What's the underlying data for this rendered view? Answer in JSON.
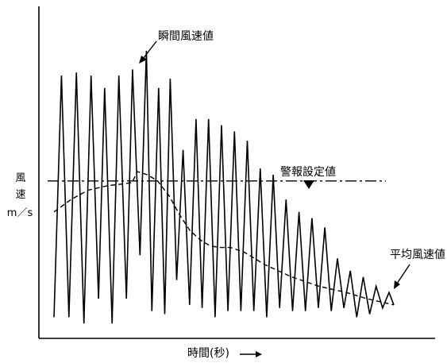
{
  "chart_data": {
    "type": "line",
    "xlabel": "時間(秒)",
    "ylabel_chars": [
      "風",
      "速"
    ],
    "ylabel_unit": "m／s",
    "xlim": [
      0,
      100
    ],
    "ylim": [
      0,
      100
    ],
    "grid": false,
    "annotations": {
      "instant": "瞬間風速値",
      "threshold": "警報設定値",
      "average": "平均風速値"
    },
    "series": [
      {
        "key": "instant",
        "style": "solid",
        "x": [
          0.0,
          2.2,
          4.4,
          6.6,
          8.8,
          10.9,
          13.1,
          14.9,
          17.1,
          19.1,
          21.3,
          23.1,
          25.3,
          27.2,
          28.8,
          30.8,
          32.6,
          34.2,
          36.1,
          38.0,
          39.9,
          41.8,
          43.6,
          45.5,
          47.4,
          49.3,
          51.2,
          53.1,
          55.0,
          56.9,
          58.8,
          60.7,
          62.6,
          64.5,
          66.4,
          68.3,
          70.2,
          72.1,
          74.0,
          75.9,
          77.8,
          79.7,
          81.6,
          83.4,
          85.3,
          87.2,
          89.1,
          91.0,
          92.9,
          94.8,
          96.7,
          98.6,
          100
        ],
        "y": [
          4,
          82,
          4,
          83,
          2,
          82,
          10,
          78,
          2,
          82,
          10,
          84,
          24,
          90,
          6,
          78,
          5,
          81,
          16,
          58,
          8,
          68,
          7,
          68,
          4,
          66,
          6,
          64,
          6,
          61,
          6,
          52,
          4,
          50,
          7,
          42,
          6,
          38,
          6,
          36,
          7,
          33,
          6,
          23,
          7,
          19,
          4,
          17,
          5,
          14,
          7,
          12,
          8
        ]
      },
      {
        "key": "threshold",
        "style": "dash-dot",
        "x": [
          0,
          100
        ],
        "y": [
          48,
          48
        ]
      },
      {
        "key": "average",
        "style": "dashed",
        "x": [
          0,
          5,
          10,
          16,
          20,
          23,
          24.5,
          27.5,
          30.5,
          34,
          37,
          40,
          43,
          46,
          49,
          52,
          56,
          62,
          70,
          78,
          86,
          92,
          96,
          100
        ],
        "y": [
          38,
          42,
          45,
          46.5,
          47,
          47.5,
          51,
          50,
          48,
          43,
          37,
          32,
          29,
          27,
          26.5,
          26.5,
          25,
          21,
          17,
          14,
          12,
          10,
          9,
          8
        ]
      }
    ]
  }
}
